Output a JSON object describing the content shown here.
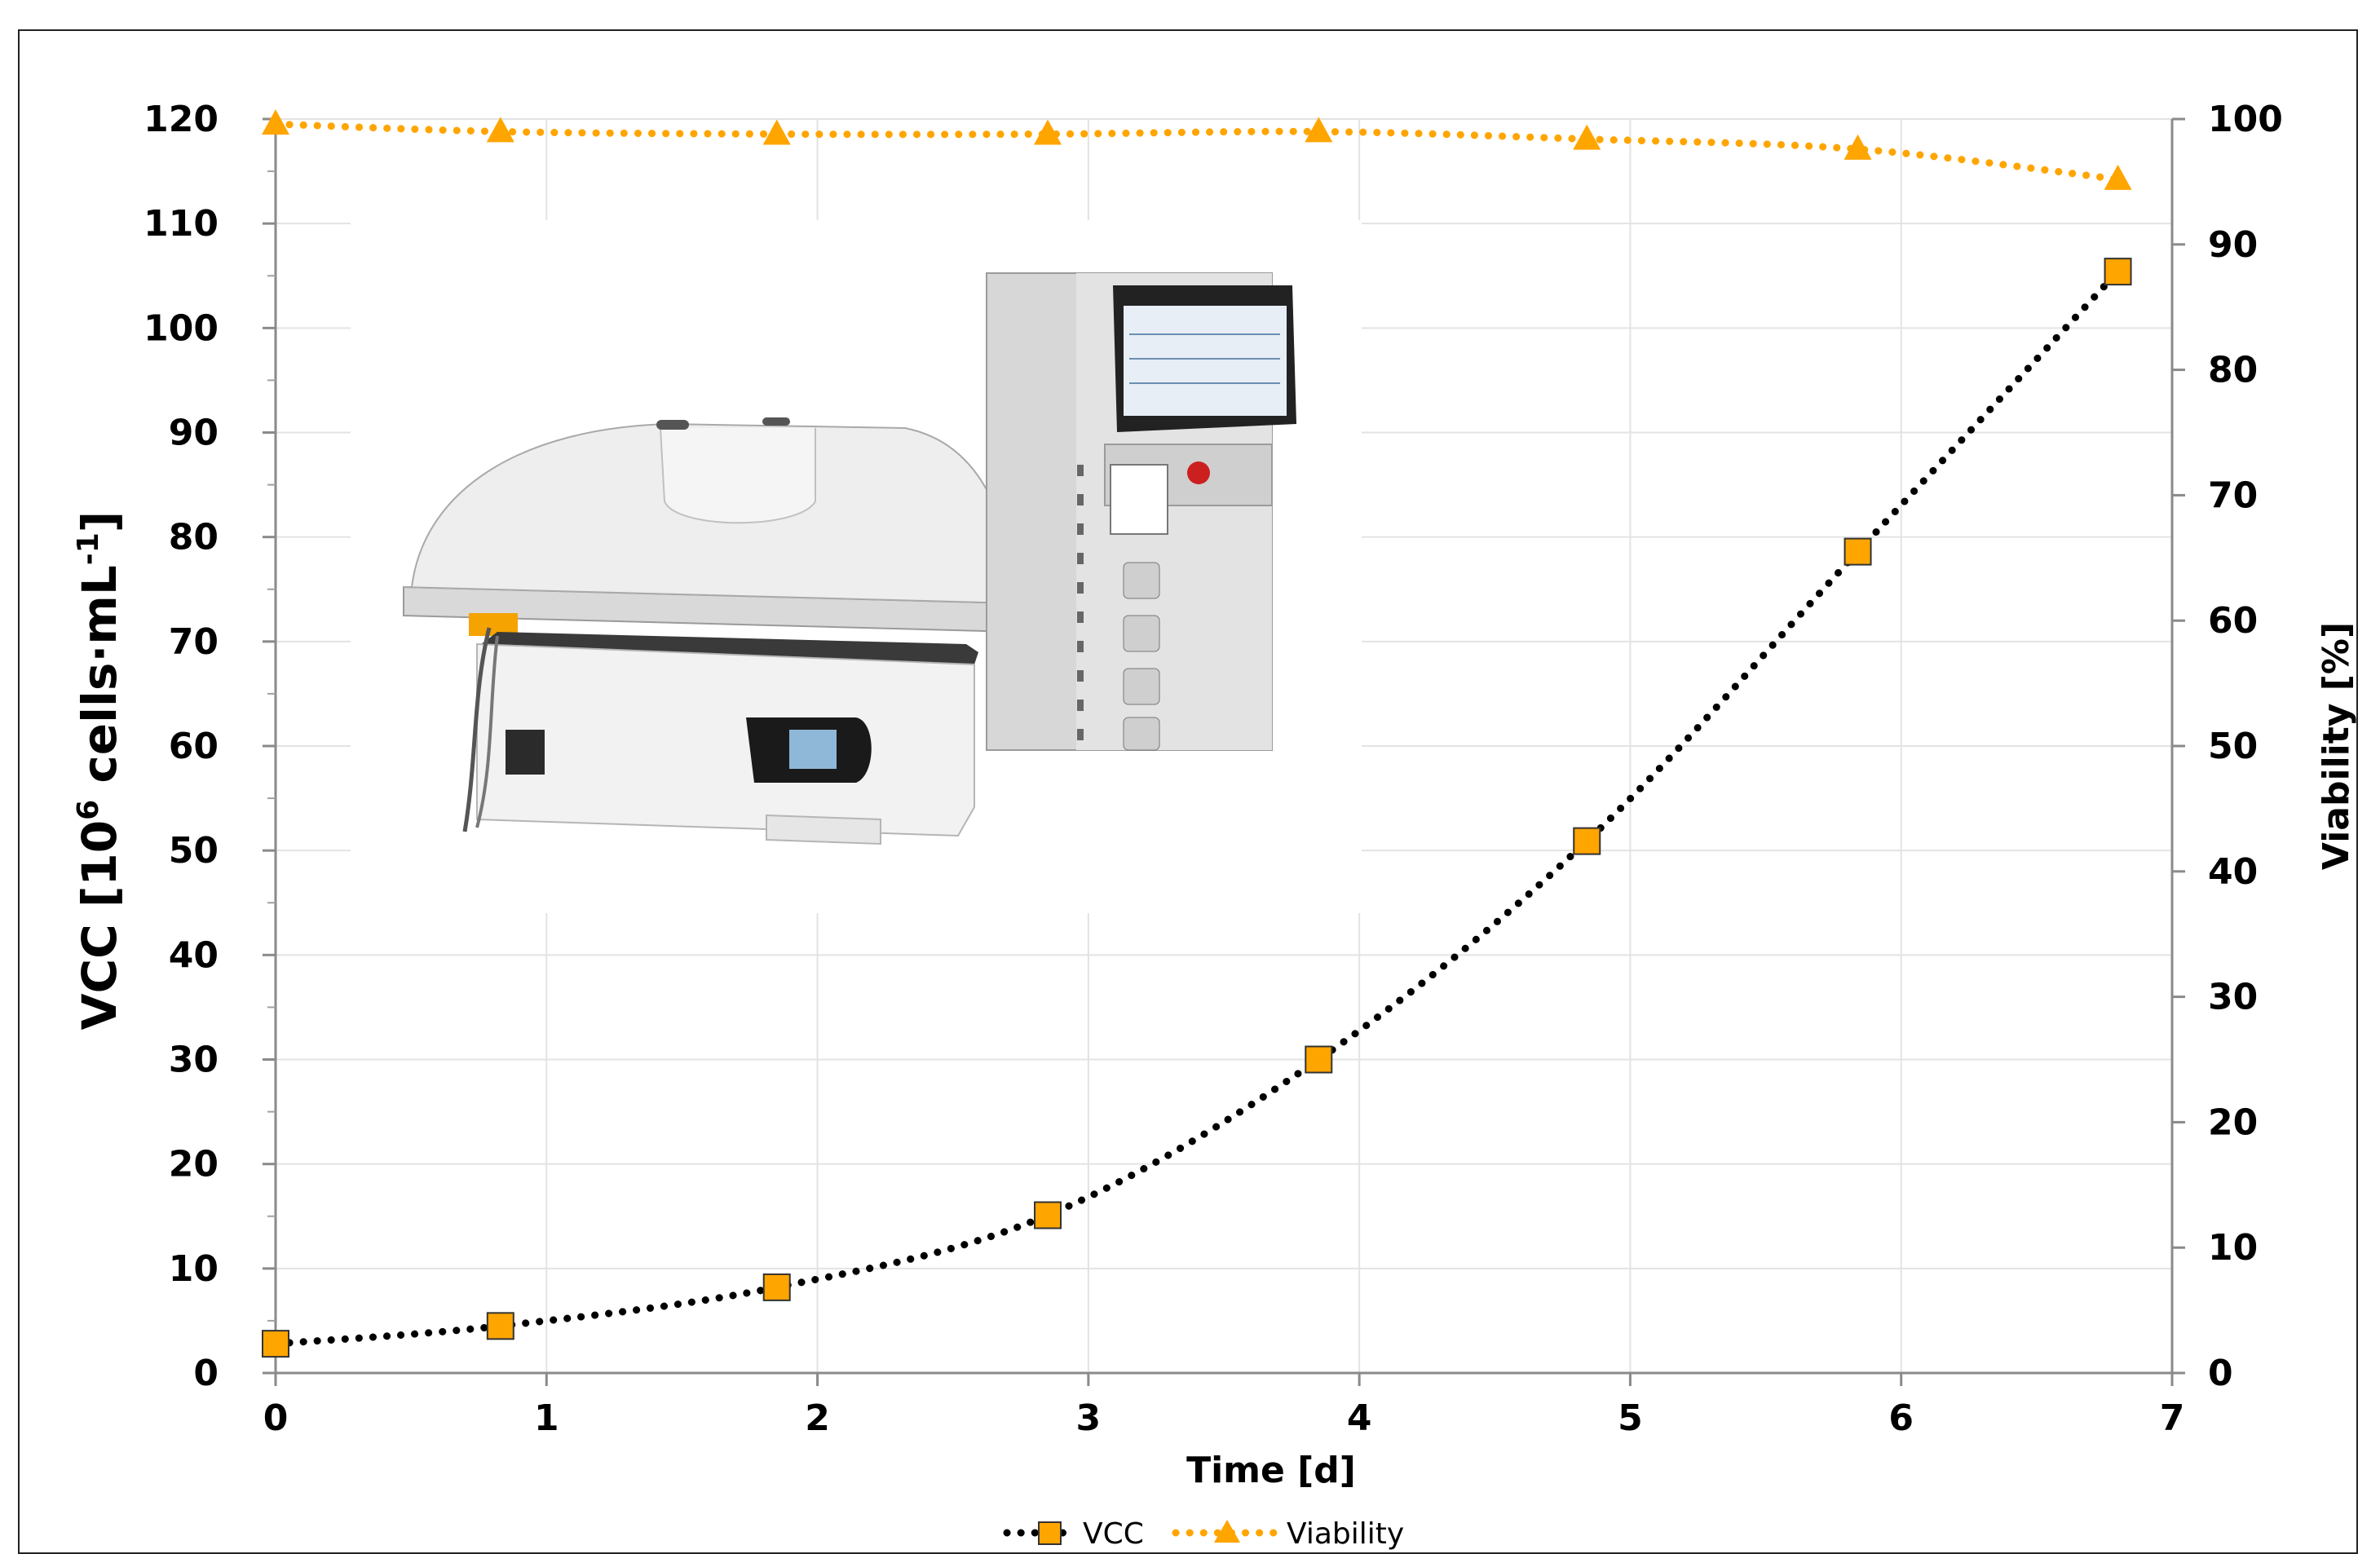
{
  "chart_data": {
    "type": "line",
    "xlabel": "Time   [d]",
    "ylabel": {
      "prefix": "VCC [10",
      "sup1": "6",
      "mid": " cells·mL",
      "sup2": "-1",
      "suffix": "]"
    },
    "y2label": "Viability [%]",
    "xlim": [
      0,
      7
    ],
    "ylim": [
      0,
      120
    ],
    "y2lim": [
      0,
      100
    ],
    "x_ticks": [
      "0",
      "1",
      "2",
      "3",
      "4",
      "5",
      "6",
      "7"
    ],
    "y_ticks": [
      "0",
      "10",
      "20",
      "30",
      "40",
      "50",
      "60",
      "70",
      "80",
      "90",
      "100",
      "110",
      "120"
    ],
    "y2_ticks": [
      "0",
      "10",
      "20",
      "30",
      "40",
      "50",
      "60",
      "70",
      "80",
      "90",
      "100"
    ],
    "grid": true,
    "legend_position": "bottom",
    "series": [
      {
        "name": "VCC",
        "axis": "left",
        "marker": "square",
        "color": "#FFA500",
        "line_color": "#000000",
        "x": [
          0,
          0.83,
          1.85,
          2.85,
          3.85,
          4.84,
          5.84,
          6.8
        ],
        "values": [
          2.8,
          4.5,
          8.2,
          15.1,
          30.0,
          50.9,
          78.6,
          105.4
        ]
      },
      {
        "name": "Viability",
        "axis": "right",
        "marker": "triangle",
        "color": "#FFA500",
        "line_color": "#FFA500",
        "x": [
          0,
          0.83,
          1.85,
          2.85,
          3.85,
          4.84,
          5.84,
          6.8
        ],
        "values": [
          99.6,
          99.0,
          98.8,
          98.8,
          99.0,
          98.4,
          97.6,
          95.2
        ]
      }
    ]
  }
}
